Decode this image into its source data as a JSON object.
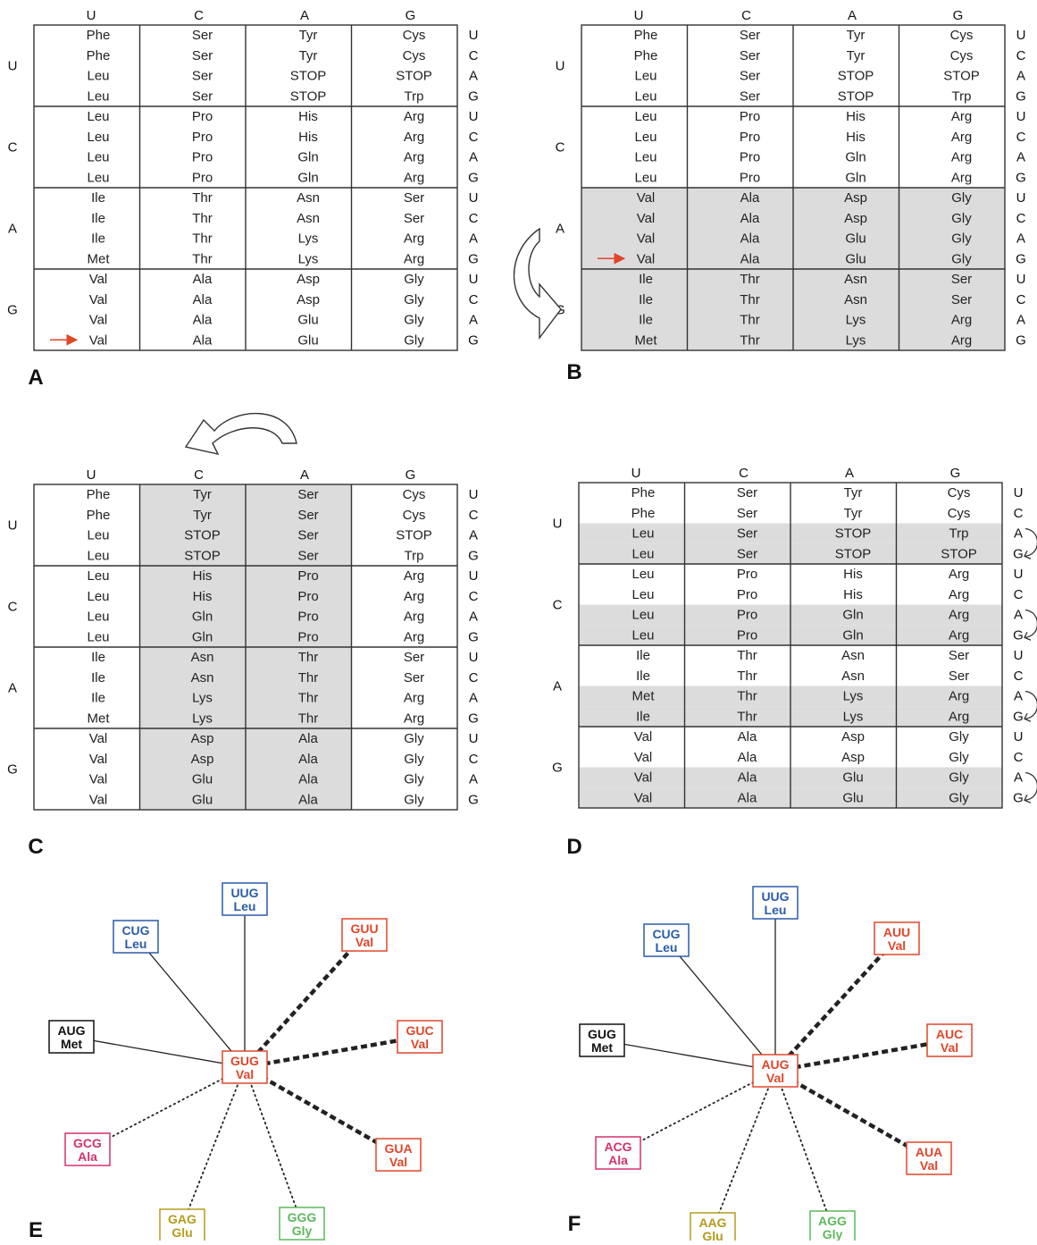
{
  "colors": {
    "stop": "#e0462a",
    "met": "#3fae49",
    "arrow": "#e0462a",
    "shade": "#dcdcdc",
    "grid": "#333333",
    "node_blue": "#2a5caa",
    "node_red": "#e0462a",
    "node_black": "#111111",
    "node_pink": "#d4316e",
    "node_olive": "#b59b1c",
    "node_green": "#5cb85c"
  },
  "bases": [
    "U",
    "C",
    "A",
    "G"
  ],
  "panels": {
    "A": {
      "letter": "A",
      "cols": [
        "U",
        "C",
        "A",
        "G"
      ],
      "rows": [
        "U",
        "C",
        "A",
        "G"
      ],
      "cells": [
        [
          "Phe",
          "Ser",
          "Tyr",
          "Cys"
        ],
        [
          "Phe",
          "Ser",
          "Tyr",
          "Cys"
        ],
        [
          "Leu",
          "Ser",
          "STOP",
          "STOP"
        ],
        [
          "Leu",
          "Ser",
          "STOP",
          "Trp"
        ],
        [
          "Leu",
          "Pro",
          "His",
          "Arg"
        ],
        [
          "Leu",
          "Pro",
          "His",
          "Arg"
        ],
        [
          "Leu",
          "Pro",
          "Gln",
          "Arg"
        ],
        [
          "Leu",
          "Pro",
          "Gln",
          "Arg"
        ],
        [
          "Ile",
          "Thr",
          "Asn",
          "Ser"
        ],
        [
          "Ile",
          "Thr",
          "Asn",
          "Ser"
        ],
        [
          "Ile",
          "Thr",
          "Lys",
          "Arg"
        ],
        [
          "Met",
          "Thr",
          "Lys",
          "Arg"
        ],
        [
          "Val",
          "Ala",
          "Asp",
          "Gly"
        ],
        [
          "Val",
          "Ala",
          "Asp",
          "Gly"
        ],
        [
          "Val",
          "Ala",
          "Glu",
          "Gly"
        ],
        [
          "Val",
          "Ala",
          "Glu",
          "Gly"
        ]
      ]
    },
    "B": {
      "letter": "B",
      "cols": [
        "U",
        "C",
        "A",
        "G"
      ],
      "rows": [
        "U",
        "C",
        "A",
        "G"
      ],
      "cells": [
        [
          "Phe",
          "Ser",
          "Tyr",
          "Cys"
        ],
        [
          "Phe",
          "Ser",
          "Tyr",
          "Cys"
        ],
        [
          "Leu",
          "Ser",
          "STOP",
          "STOP"
        ],
        [
          "Leu",
          "Ser",
          "STOP",
          "Trp"
        ],
        [
          "Leu",
          "Pro",
          "His",
          "Arg"
        ],
        [
          "Leu",
          "Pro",
          "His",
          "Arg"
        ],
        [
          "Leu",
          "Pro",
          "Gln",
          "Arg"
        ],
        [
          "Leu",
          "Pro",
          "Gln",
          "Arg"
        ],
        [
          "Val",
          "Ala",
          "Asp",
          "Gly"
        ],
        [
          "Val",
          "Ala",
          "Asp",
          "Gly"
        ],
        [
          "Val",
          "Ala",
          "Glu",
          "Gly"
        ],
        [
          "Val",
          "Ala",
          "Glu",
          "Gly"
        ],
        [
          "Ile",
          "Thr",
          "Asn",
          "Ser"
        ],
        [
          "Ile",
          "Thr",
          "Asn",
          "Ser"
        ],
        [
          "Ile",
          "Thr",
          "Lys",
          "Arg"
        ],
        [
          "Met",
          "Thr",
          "Lys",
          "Arg"
        ]
      ]
    },
    "C": {
      "letter": "C",
      "cols": [
        "U",
        "C",
        "A",
        "G"
      ],
      "rows": [
        "U",
        "C",
        "A",
        "G"
      ],
      "cells": [
        [
          "Phe",
          "Tyr",
          "Ser",
          "Cys"
        ],
        [
          "Phe",
          "Tyr",
          "Ser",
          "Cys"
        ],
        [
          "Leu",
          "STOP",
          "Ser",
          "STOP"
        ],
        [
          "Leu",
          "STOP",
          "Ser",
          "Trp"
        ],
        [
          "Leu",
          "His",
          "Pro",
          "Arg"
        ],
        [
          "Leu",
          "His",
          "Pro",
          "Arg"
        ],
        [
          "Leu",
          "Gln",
          "Pro",
          "Arg"
        ],
        [
          "Leu",
          "Gln",
          "Pro",
          "Arg"
        ],
        [
          "Ile",
          "Asn",
          "Thr",
          "Ser"
        ],
        [
          "Ile",
          "Asn",
          "Thr",
          "Ser"
        ],
        [
          "Ile",
          "Lys",
          "Thr",
          "Arg"
        ],
        [
          "Met",
          "Lys",
          "Thr",
          "Arg"
        ],
        [
          "Val",
          "Asp",
          "Ala",
          "Gly"
        ],
        [
          "Val",
          "Asp",
          "Ala",
          "Gly"
        ],
        [
          "Val",
          "Glu",
          "Ala",
          "Gly"
        ],
        [
          "Val",
          "Glu",
          "Ala",
          "Gly"
        ]
      ]
    },
    "D": {
      "letter": "D",
      "cols": [
        "U",
        "C",
        "A",
        "G"
      ],
      "rows": [
        "U",
        "C",
        "A",
        "G"
      ],
      "cells": [
        [
          "Phe",
          "Ser",
          "Tyr",
          "Cys"
        ],
        [
          "Phe",
          "Ser",
          "Tyr",
          "Cys"
        ],
        [
          "Leu",
          "Ser",
          "STOP",
          "Trp"
        ],
        [
          "Leu",
          "Ser",
          "STOP",
          "STOP"
        ],
        [
          "Leu",
          "Pro",
          "His",
          "Arg"
        ],
        [
          "Leu",
          "Pro",
          "His",
          "Arg"
        ],
        [
          "Leu",
          "Pro",
          "Gln",
          "Arg"
        ],
        [
          "Leu",
          "Pro",
          "Gln",
          "Arg"
        ],
        [
          "Ile",
          "Thr",
          "Asn",
          "Ser"
        ],
        [
          "Ile",
          "Thr",
          "Asn",
          "Ser"
        ],
        [
          "Met",
          "Thr",
          "Lys",
          "Arg"
        ],
        [
          "Ile",
          "Thr",
          "Lys",
          "Arg"
        ],
        [
          "Val",
          "Ala",
          "Asp",
          "Gly"
        ],
        [
          "Val",
          "Ala",
          "Asp",
          "Gly"
        ],
        [
          "Val",
          "Ala",
          "Glu",
          "Gly"
        ],
        [
          "Val",
          "Ala",
          "Glu",
          "Gly"
        ]
      ]
    }
  },
  "stars": {
    "E": {
      "letter": "E",
      "center": {
        "codon": "GUG",
        "aa": "Val",
        "color": "node_red"
      },
      "nodes": [
        {
          "codon": "UUG",
          "aa": "Leu",
          "color": "node_blue",
          "line": "solid"
        },
        {
          "codon": "CUG",
          "aa": "Leu",
          "color": "node_blue",
          "line": "solid"
        },
        {
          "codon": "AUG",
          "aa": "Met",
          "color": "node_black",
          "line": "solid"
        },
        {
          "codon": "GUU",
          "aa": "Val",
          "color": "node_red",
          "line": "dashed"
        },
        {
          "codon": "GUC",
          "aa": "Val",
          "color": "node_red",
          "line": "dashed"
        },
        {
          "codon": "GUA",
          "aa": "Val",
          "color": "node_red",
          "line": "dashed"
        },
        {
          "codon": "GCG",
          "aa": "Ala",
          "color": "node_pink",
          "line": "dotted"
        },
        {
          "codon": "GAG",
          "aa": "Glu",
          "color": "node_olive",
          "line": "dotted"
        },
        {
          "codon": "GGG",
          "aa": "Gly",
          "color": "node_green",
          "line": "dotted"
        }
      ]
    },
    "F": {
      "letter": "F",
      "center": {
        "codon": "AUG",
        "aa": "Val",
        "color": "node_red"
      },
      "nodes": [
        {
          "codon": "UUG",
          "aa": "Leu",
          "color": "node_blue",
          "line": "solid"
        },
        {
          "codon": "CUG",
          "aa": "Leu",
          "color": "node_blue",
          "line": "solid"
        },
        {
          "codon": "GUG",
          "aa": "Met",
          "color": "node_black",
          "line": "solid"
        },
        {
          "codon": "AUU",
          "aa": "Val",
          "color": "node_red",
          "line": "dashed"
        },
        {
          "codon": "AUC",
          "aa": "Val",
          "color": "node_red",
          "line": "dashed"
        },
        {
          "codon": "AUA",
          "aa": "Val",
          "color": "node_red",
          "line": "dashed"
        },
        {
          "codon": "ACG",
          "aa": "Ala",
          "color": "node_pink",
          "line": "dotted"
        },
        {
          "codon": "AAG",
          "aa": "Glu",
          "color": "node_olive",
          "line": "dotted"
        },
        {
          "codon": "AGG",
          "aa": "Gly",
          "color": "node_green",
          "line": "dotted"
        }
      ]
    }
  }
}
